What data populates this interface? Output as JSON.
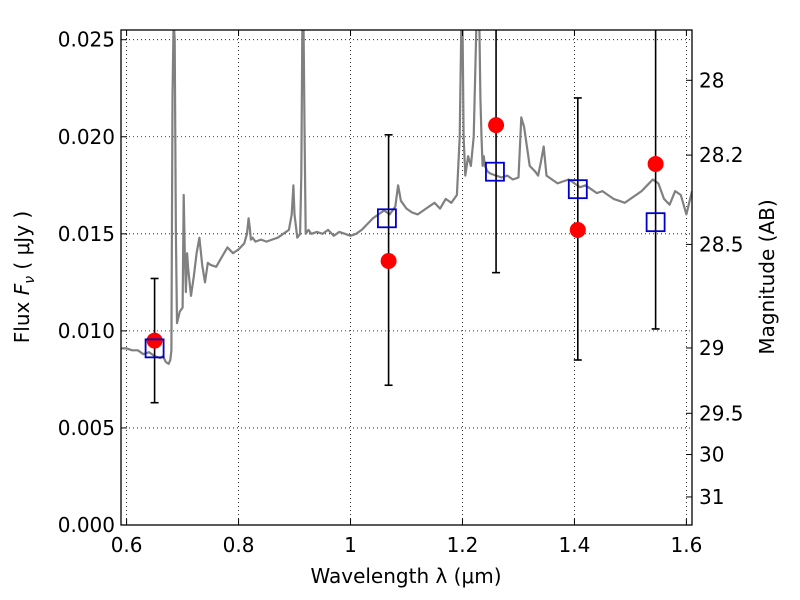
{
  "chart_data": {
    "type": "scatter",
    "title": "",
    "xlabel": "Wavelength  λ (μm)",
    "ylabel_parts": [
      "Flux  ",
      "F",
      "ν",
      "  ( μJy )"
    ],
    "y2label": "Magnitude (AB)",
    "xlim": [
      0.59,
      1.61
    ],
    "ylim": [
      0.0,
      0.0255
    ],
    "grid": true,
    "x_ticks": [
      {
        "value": 0.6,
        "label": "0.6"
      },
      {
        "value": 0.8,
        "label": "0.8"
      },
      {
        "value": 1.0,
        "label": "1"
      },
      {
        "value": 1.2,
        "label": "1.2"
      },
      {
        "value": 1.4,
        "label": "1.4"
      },
      {
        "value": 1.6,
        "label": "1.6"
      }
    ],
    "y_ticks": [
      {
        "value": 0.0,
        "label": "0.000"
      },
      {
        "value": 0.005,
        "label": "0.005"
      },
      {
        "value": 0.01,
        "label": "0.010"
      },
      {
        "value": 0.015,
        "label": "0.015"
      },
      {
        "value": 0.02,
        "label": "0.020"
      },
      {
        "value": 0.025,
        "label": "0.025"
      }
    ],
    "mag_ticks": [
      {
        "mag": 28.0,
        "label": "28"
      },
      {
        "mag": 28.2,
        "label": "28.2"
      },
      {
        "mag": 28.5,
        "label": "28.5"
      },
      {
        "mag": 29.0,
        "label": "29"
      },
      {
        "mag": 29.5,
        "label": "29.5"
      },
      {
        "mag": 30.0,
        "label": "30"
      },
      {
        "mag": 31.0,
        "label": "31"
      }
    ],
    "series": [
      {
        "kind": "spectrum",
        "color": "#808080",
        "x": [
          0.59,
          0.6,
          0.61,
          0.62,
          0.63,
          0.64,
          0.65,
          0.66,
          0.665,
          0.67,
          0.675,
          0.678,
          0.68,
          0.682,
          0.684,
          0.686,
          0.688,
          0.69,
          0.695,
          0.7,
          0.702,
          0.704,
          0.706,
          0.708,
          0.71,
          0.715,
          0.72,
          0.725,
          0.73,
          0.735,
          0.74,
          0.745,
          0.75,
          0.76,
          0.77,
          0.78,
          0.79,
          0.8,
          0.81,
          0.815,
          0.818,
          0.82,
          0.822,
          0.825,
          0.83,
          0.84,
          0.85,
          0.86,
          0.87,
          0.88,
          0.89,
          0.895,
          0.898,
          0.9,
          0.905,
          0.91,
          0.912,
          0.914,
          0.916,
          0.918,
          0.92,
          0.925,
          0.93,
          0.94,
          0.95,
          0.96,
          0.97,
          0.98,
          0.99,
          1.0,
          1.01,
          1.02,
          1.03,
          1.04,
          1.05,
          1.06,
          1.07,
          1.08,
          1.085,
          1.09,
          1.1,
          1.11,
          1.12,
          1.13,
          1.14,
          1.15,
          1.16,
          1.17,
          1.18,
          1.19,
          1.195,
          1.198,
          1.2,
          1.202,
          1.205,
          1.21,
          1.215,
          1.22,
          1.225,
          1.23,
          1.232,
          1.234,
          1.236,
          1.238,
          1.24,
          1.245,
          1.25,
          1.26,
          1.27,
          1.28,
          1.29,
          1.3,
          1.305,
          1.31,
          1.32,
          1.33,
          1.335,
          1.34,
          1.345,
          1.35,
          1.36,
          1.37,
          1.38,
          1.39,
          1.4,
          1.41,
          1.42,
          1.43,
          1.44,
          1.45,
          1.46,
          1.47,
          1.48,
          1.49,
          1.5,
          1.51,
          1.52,
          1.53,
          1.54,
          1.55,
          1.56,
          1.57,
          1.58,
          1.59,
          1.6,
          1.61
        ],
        "y": [
          0.0091,
          0.0091,
          0.009,
          0.009,
          0.0088,
          0.0089,
          0.0087,
          0.0086,
          0.0087,
          0.0084,
          0.0083,
          0.0085,
          0.009,
          0.022,
          0.026,
          0.025,
          0.015,
          0.0104,
          0.011,
          0.0112,
          0.017,
          0.014,
          0.012,
          0.014,
          0.0132,
          0.0118,
          0.0128,
          0.014,
          0.0148,
          0.0134,
          0.0125,
          0.0135,
          0.0134,
          0.0133,
          0.0138,
          0.0143,
          0.014,
          0.0142,
          0.0145,
          0.015,
          0.0158,
          0.0153,
          0.0147,
          0.0148,
          0.0146,
          0.0147,
          0.0146,
          0.0147,
          0.0148,
          0.015,
          0.0152,
          0.016,
          0.0175,
          0.016,
          0.0148,
          0.015,
          0.018,
          0.026,
          0.026,
          0.02,
          0.015,
          0.0152,
          0.015,
          0.0151,
          0.015,
          0.0152,
          0.0149,
          0.0151,
          0.015,
          0.0149,
          0.015,
          0.0152,
          0.0155,
          0.0158,
          0.016,
          0.0162,
          0.016,
          0.0164,
          0.0175,
          0.0167,
          0.0163,
          0.0161,
          0.016,
          0.0162,
          0.0164,
          0.0166,
          0.0163,
          0.0168,
          0.0166,
          0.017,
          0.02,
          0.026,
          0.026,
          0.02,
          0.018,
          0.019,
          0.0185,
          0.02,
          0.026,
          0.026,
          0.022,
          0.02,
          0.0185,
          0.019,
          0.0185,
          0.0182,
          0.0181,
          0.018,
          0.0179,
          0.018,
          0.0178,
          0.0179,
          0.021,
          0.0205,
          0.0185,
          0.0182,
          0.018,
          0.0187,
          0.0195,
          0.018,
          0.0178,
          0.0176,
          0.0177,
          0.0178,
          0.0176,
          0.0174,
          0.0175,
          0.0173,
          0.0171,
          0.0172,
          0.017,
          0.0168,
          0.0167,
          0.0166,
          0.0168,
          0.017,
          0.0172,
          0.0175,
          0.0178,
          0.0176,
          0.0168,
          0.0165,
          0.0172,
          0.017,
          0.016,
          0.0172
        ]
      },
      {
        "kind": "measured",
        "marker": "filled-circle",
        "color": "#ff0000",
        "x": [
          0.65,
          1.068,
          1.26,
          1.406,
          1.545
        ],
        "y": [
          0.0095,
          0.0136,
          0.0206,
          0.0152,
          0.0186
        ],
        "yerr_low": [
          0.0063,
          0.0072,
          0.013,
          0.0085,
          0.0101
        ],
        "yerr_high": [
          0.0127,
          0.0201,
          0.026,
          0.022,
          0.026
        ]
      },
      {
        "kind": "model",
        "marker": "open-square",
        "color": "#0000cc",
        "x": [
          0.65,
          1.065,
          1.258,
          1.406,
          1.545
        ],
        "y": [
          0.0091,
          0.0158,
          0.0182,
          0.0173,
          0.0156
        ]
      }
    ],
    "colors": {
      "spectrum": "#808080",
      "measured": "#ff0000",
      "model": "#0000cc",
      "errorbar": "#000000",
      "grid": "#000000"
    }
  }
}
